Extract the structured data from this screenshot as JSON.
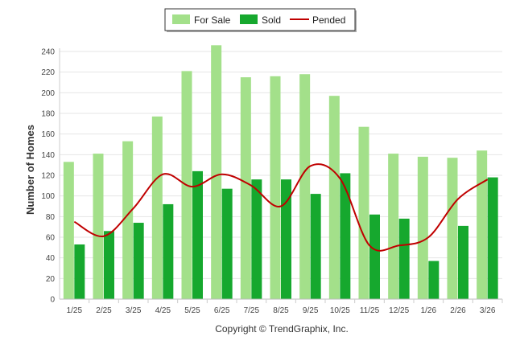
{
  "chart_data": {
    "type": "bar",
    "title": "",
    "xlabel": "",
    "ylabel": "Number of Homes",
    "ylim": [
      0,
      240
    ],
    "yticks": [
      0,
      20,
      40,
      60,
      80,
      100,
      120,
      140,
      160,
      180,
      200,
      220,
      240
    ],
    "grid": true,
    "legend_position": "top-center",
    "categories": [
      "1/25",
      "2/25",
      "3/25",
      "4/25",
      "5/25",
      "6/25",
      "7/25",
      "8/25",
      "9/25",
      "10/25",
      "11/25",
      "12/25",
      "1/26",
      "2/26",
      "3/26"
    ],
    "series": [
      {
        "name": "For Sale",
        "type": "bar",
        "color": "#a3e08a",
        "values": [
          133,
          141,
          153,
          177,
          221,
          246,
          215,
          216,
          218,
          197,
          167,
          141,
          138,
          137,
          144
        ]
      },
      {
        "name": "Sold",
        "type": "bar",
        "color": "#16a82e",
        "values": [
          53,
          66,
          74,
          92,
          124,
          107,
          116,
          116,
          102,
          122,
          82,
          78,
          37,
          71,
          118
        ]
      },
      {
        "name": "Pended",
        "type": "line",
        "color": "#c00000",
        "values": [
          75,
          61,
          88,
          121,
          109,
          121,
          110,
          90,
          129,
          117,
          52,
          52,
          60,
          97,
          116
        ]
      }
    ],
    "footer": "Copyright © TrendGraphix, Inc."
  }
}
